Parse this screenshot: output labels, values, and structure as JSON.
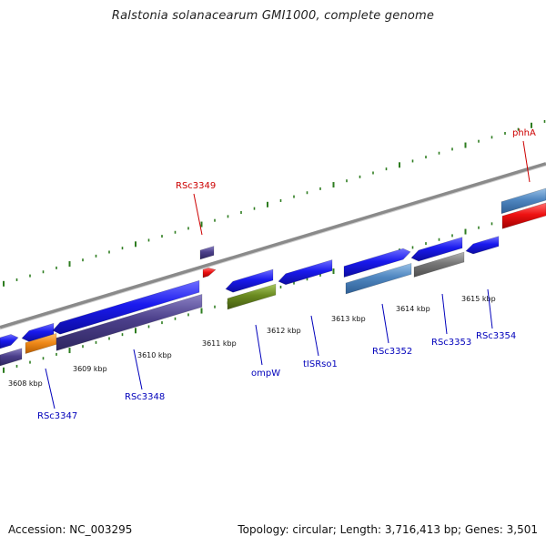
{
  "title": "Ralstonia solanacearum GMI1000, complete genome",
  "footer": {
    "accession": "Accession: NC_003295",
    "topology": "Topology: circular; Length: 3,716,413 bp; Genes: 3,501"
  },
  "colors": {
    "cds": "#1a1aee",
    "gene": "#4b3f8a",
    "rrna_blue": "#4f86c0",
    "pseudo": "#777777",
    "orange": "#f08a1a",
    "red": "#ee1111",
    "olive": "#6a8a20",
    "backbone": "#999999",
    "tick": "#2e7d20",
    "label_red": "#cc0000",
    "label_blue": "#0000bb"
  },
  "kbp_ticks": [
    "3608 kbp",
    "3609 kbp",
    "3610 kbp",
    "3611 kbp",
    "3612 kbp",
    "3613 kbp",
    "3614 kbp",
    "3615 kbp"
  ],
  "feature_labels": [
    {
      "text": "RSc3349",
      "color": "red"
    },
    {
      "text": "phhA",
      "color": "red"
    },
    {
      "text": "RSc3347",
      "color": "blue"
    },
    {
      "text": "RSc3348",
      "color": "blue"
    },
    {
      "text": "ompW",
      "color": "blue"
    },
    {
      "text": "tISRso1",
      "color": "blue"
    },
    {
      "text": "RSc3352",
      "color": "blue"
    },
    {
      "text": "RSc3353",
      "color": "blue"
    },
    {
      "text": "RSc3354",
      "color": "blue"
    }
  ]
}
